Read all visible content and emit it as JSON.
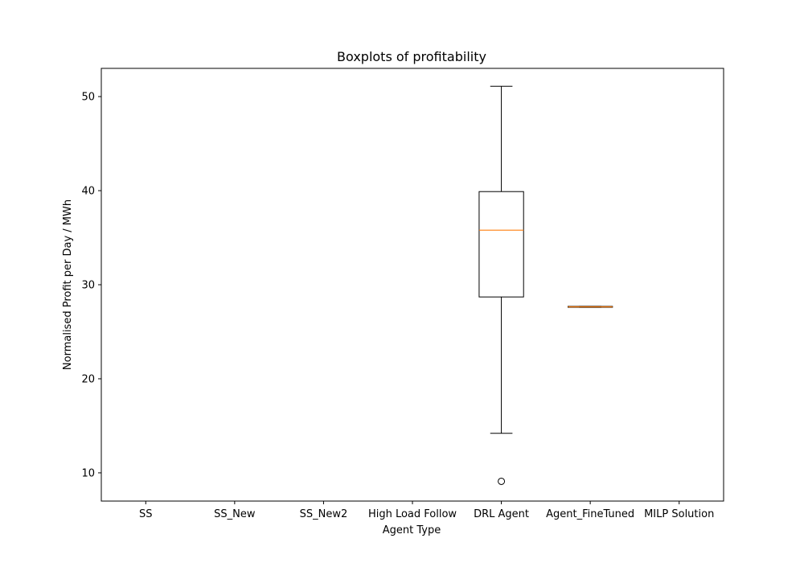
{
  "chart_data": {
    "type": "boxplot",
    "title": "Boxplots of profitability",
    "xlabel": "Agent Type",
    "ylabel": "Normalised Profit per Day / MWh",
    "categories": [
      "SS",
      "SS_New",
      "SS_New2",
      "High Load Follow",
      "DRL Agent",
      "Agent_FineTuned",
      "MILP Solution"
    ],
    "yticks": [
      10,
      20,
      30,
      40,
      50
    ],
    "ylim": [
      7,
      53
    ],
    "grid": false,
    "boxes": [
      null,
      null,
      null,
      null,
      {
        "whisker_low": 14.2,
        "q1": 28.7,
        "median": 35.8,
        "q3": 39.9,
        "whisker_high": 51.1,
        "outliers": [
          9.1
        ]
      },
      {
        "whisker_low": 27.6,
        "q1": 27.6,
        "median": 27.65,
        "q3": 27.7,
        "whisker_high": 27.7,
        "outliers": []
      },
      null
    ],
    "colors": {
      "box": "#000000",
      "median": "#ff7f0e",
      "axes": "#000000"
    }
  }
}
